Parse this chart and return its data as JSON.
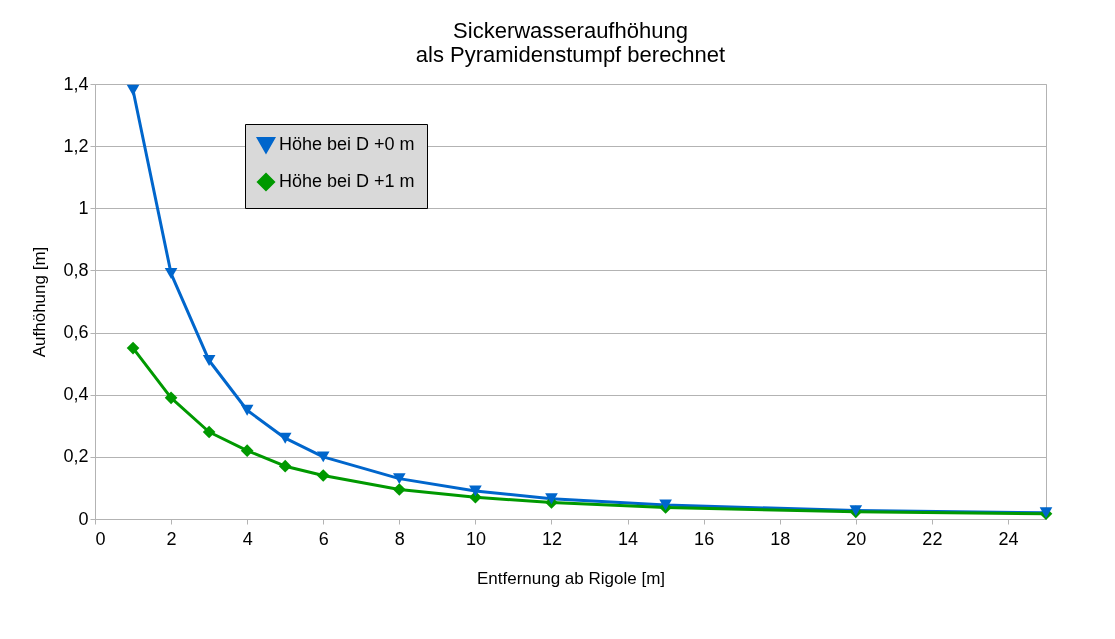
{
  "chart_data": {
    "type": "line",
    "title": "Sickerwasseraufhöhung\nals Pyramidenstumpf berechnet",
    "xlabel": "Entfernung ab Rigole [m]",
    "ylabel": "Aufhöhung [m]",
    "x": [
      1,
      2,
      3,
      4,
      5,
      6,
      8,
      10,
      12,
      15,
      20,
      25
    ],
    "series": [
      {
        "name": "Höhe bei D +0 m",
        "color": "#0066cc",
        "marker": "triangle-down",
        "values": [
          1.38,
          0.79,
          0.51,
          0.35,
          0.26,
          0.2,
          0.13,
          0.09,
          0.065,
          0.045,
          0.027,
          0.02
        ]
      },
      {
        "name": "Höhe bei D +1 m",
        "color": "#009900",
        "marker": "diamond",
        "values": [
          0.55,
          0.39,
          0.28,
          0.22,
          0.17,
          0.14,
          0.095,
          0.07,
          0.053,
          0.037,
          0.023,
          0.017
        ]
      }
    ],
    "xlim": [
      0,
      25
    ],
    "xticks": [
      0,
      2,
      4,
      6,
      8,
      10,
      12,
      14,
      16,
      18,
      20,
      22,
      24
    ],
    "ylim": [
      0,
      1.4
    ],
    "yticks": [
      0,
      {
        "value": 0.2,
        "label": "0,2"
      },
      {
        "value": 0.4,
        "label": "0,4"
      },
      {
        "value": 0.6,
        "label": "0,6"
      },
      {
        "value": 0.8,
        "label": "0,8"
      },
      1,
      {
        "value": 1.2,
        "label": "1,2"
      },
      {
        "value": 1.4,
        "label": "1,4"
      }
    ],
    "grid": "y",
    "legend": "top left",
    "line_style": "solid"
  }
}
